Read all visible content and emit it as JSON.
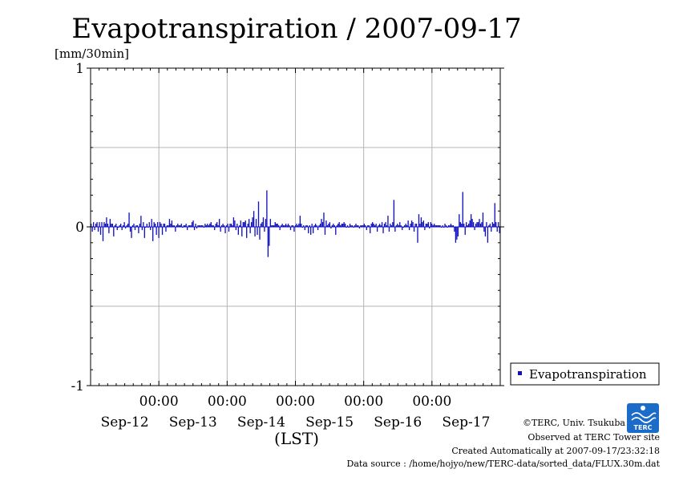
{
  "chart_data": {
    "type": "bar",
    "title": "Evapotranspiration / 2007-09-17",
    "ylabel": "[mm/30min]",
    "xlabel": "(LST)",
    "ylim": [
      -1,
      1
    ],
    "yticks": [
      {
        "value": 1,
        "label": "1"
      },
      {
        "value": 0,
        "label": "0"
      },
      {
        "value": -1,
        "label": "-1"
      }
    ],
    "ygrid": [
      0.5,
      -0.5
    ],
    "xrange_days": [
      0,
      6
    ],
    "xticks": [
      {
        "pos": 1,
        "time": "00:00",
        "date": "Sep-12"
      },
      {
        "pos": 2,
        "time": "00:00",
        "date": "Sep-13"
      },
      {
        "pos": 3,
        "time": "00:00",
        "date": "Sep-14"
      },
      {
        "pos": 4,
        "time": "00:00",
        "date": "Sep-15"
      },
      {
        "pos": 5,
        "time": "00:00",
        "date": "Sep-16"
      },
      {
        "pos": 6,
        "time": "",
        "date": "Sep-17"
      }
    ],
    "grid": true,
    "legend": {
      "position": "right",
      "entries": [
        {
          "name": "Evapotranspiration",
          "color": "#1010c0"
        }
      ]
    },
    "series": [
      {
        "name": "Evapotranspiration",
        "color": "#1010c0",
        "values": [
          0.02,
          -0.03,
          0.03,
          -0.02,
          0.02,
          0.03,
          -0.03,
          0.03,
          -0.05,
          0.03,
          -0.09,
          0.03,
          0.02,
          0.06,
          0.02,
          -0.04,
          0.05,
          0.02,
          0.02,
          -0.06,
          0.01,
          0.02,
          -0.02,
          0.0,
          0.01,
          0.02,
          -0.02,
          0.01,
          0.03,
          -0.01,
          0.01,
          0.02,
          0.09,
          -0.03,
          -0.07,
          0.01,
          0.02,
          -0.02,
          0.01,
          0.01,
          -0.04,
          0.02,
          0.07,
          -0.02,
          0.03,
          -0.07,
          0.0,
          0.02,
          0.0,
          0.03,
          -0.02,
          0.05,
          -0.09,
          0.03,
          0.02,
          -0.05,
          0.03,
          -0.07,
          0.03,
          0.02,
          -0.05,
          0.02,
          0.02,
          -0.03,
          0.01,
          0.01,
          0.05,
          0.02,
          0.04,
          0.01,
          0.01,
          -0.03,
          0.01,
          0.02,
          0.01,
          0.01,
          0.02,
          0.0,
          0.01,
          0.01,
          0.02,
          -0.02,
          0.01,
          0.01,
          0.01,
          0.03,
          0.04,
          -0.02,
          0.02,
          -0.01,
          0.01,
          0.01,
          0.01,
          0.01,
          0.01,
          0.0,
          0.02,
          0.01,
          0.02,
          0.01,
          0.02,
          0.03,
          0.01,
          0.01,
          -0.02,
          0.02,
          0.03,
          0.01,
          0.05,
          -0.03,
          0.01,
          0.02,
          0.01,
          -0.04,
          0.01,
          0.02,
          -0.03,
          0.02,
          0.02,
          0.01,
          0.06,
          0.04,
          -0.02,
          0.02,
          -0.05,
          0.01,
          0.04,
          -0.06,
          0.03,
          0.03,
          0.04,
          -0.07,
          0.02,
          0.05,
          -0.04,
          0.03,
          0.06,
          0.1,
          -0.06,
          0.05,
          -0.05,
          0.16,
          -0.08,
          0.02,
          0.03,
          0.06,
          -0.03,
          0.05,
          0.23,
          -0.19,
          -0.12,
          0.05,
          0.01,
          0.01,
          0.01,
          0.03,
          0.02,
          0.02,
          0.01,
          -0.02,
          0.01,
          0.02,
          0.01,
          0.01,
          0.02,
          0.01,
          0.02,
          0.01,
          -0.02,
          0.01,
          0.01,
          -0.03,
          0.01,
          0.02,
          0.01,
          0.02,
          0.07,
          0.02,
          0.0,
          0.01,
          -0.02,
          0.01,
          0.01,
          -0.04,
          0.01,
          -0.05,
          0.02,
          -0.04,
          0.01,
          0.02,
          0.01,
          -0.02,
          0.01,
          0.02,
          0.05,
          0.03,
          0.09,
          -0.05,
          0.04,
          0.01,
          0.02,
          0.03,
          -0.01,
          0.01,
          0.02,
          0.01,
          -0.05,
          0.01,
          0.02,
          0.03,
          0.01,
          0.02,
          0.02,
          0.03,
          0.02,
          0.0,
          0.01,
          0.0,
          0.02,
          0.01,
          0.01,
          0.0,
          0.01,
          0.02,
          0.01,
          0.01,
          -0.01,
          0.01,
          0.01,
          0.01,
          0.02,
          0.01,
          -0.02,
          0.01,
          0.01,
          -0.04,
          0.02,
          0.03,
          0.02,
          0.01,
          0.02,
          -0.03,
          0.01,
          0.02,
          0.01,
          0.03,
          -0.04,
          0.02,
          0.03,
          0.01,
          0.07,
          -0.03,
          0.02,
          0.01,
          0.03,
          0.17,
          -0.03,
          0.01,
          0.02,
          0.01,
          0.03,
          0.01,
          -0.02,
          0.0,
          0.01,
          0.02,
          0.01,
          0.04,
          -0.02,
          0.02,
          0.04,
          0.03,
          -0.03,
          0.02,
          0.02,
          -0.1,
          0.08,
          0.02,
          0.06,
          0.03,
          0.04,
          -0.02,
          0.02,
          0.02,
          0.03,
          -0.01,
          0.03,
          0.02,
          0.01,
          0.02,
          0.01,
          0.01,
          0.01,
          0.01,
          0.01,
          0.0,
          0.01,
          0.0,
          0.02,
          0.01,
          0.0,
          0.01,
          0.01,
          0.02,
          0.01,
          0.01,
          -0.03,
          -0.1,
          -0.08,
          -0.06,
          0.08,
          0.03,
          0.02,
          0.22,
          0.02,
          -0.05,
          0.03,
          0.01,
          0.02,
          0.04,
          0.08,
          0.05,
          0.03,
          -0.02,
          0.02,
          0.03,
          0.03,
          0.05,
          0.02,
          0.03,
          0.09,
          -0.03,
          -0.06,
          0.03,
          -0.1,
          0.01,
          0.02,
          -0.03,
          0.03,
          0.02,
          0.15,
          0.03,
          -0.03,
          0.03,
          -0.04
        ]
      }
    ]
  },
  "footer": {
    "credit": "©TERC, Univ. Tsukuba",
    "site": "Observed at TERC Tower site",
    "created": "Created Automatically at 2007-09-17/23:32:18",
    "source": "Data source : /home/hojyo/new/TERC-data/sorted_data/FLUX.30m.dat",
    "logo_text": "TERC"
  },
  "colors": {
    "series": "#1010c0",
    "grid": "#b4b4b4",
    "logo": "#1a6cc8"
  }
}
